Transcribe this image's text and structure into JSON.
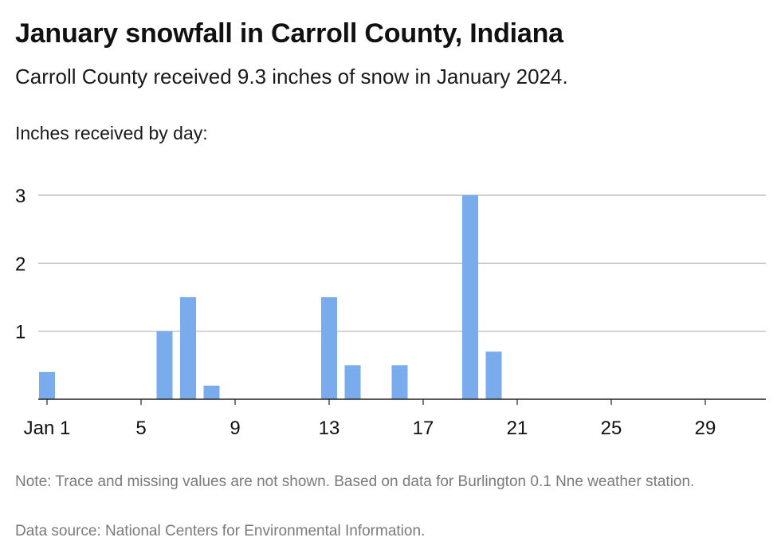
{
  "chart_data": {
    "type": "bar",
    "title": "January snowfall in Carroll County, Indiana",
    "subtitle": "Carroll County received 9.3 inches of snow in January 2024.",
    "ylabel": "Inches received by day:",
    "xlabel": "",
    "x": [
      1,
      2,
      3,
      4,
      5,
      6,
      7,
      8,
      9,
      10,
      11,
      12,
      13,
      14,
      15,
      16,
      17,
      18,
      19,
      20,
      21,
      22,
      23,
      24,
      25,
      26,
      27,
      28,
      29,
      30,
      31
    ],
    "values": [
      0.4,
      0,
      0,
      0,
      0,
      1.0,
      1.5,
      0.2,
      0,
      0,
      0,
      0,
      1.5,
      0.5,
      0,
      0.5,
      0,
      0,
      3.0,
      0.7,
      0,
      0,
      0,
      0,
      0,
      0,
      0,
      0,
      0,
      0,
      0
    ],
    "x_ticks": [
      {
        "value": 1,
        "label": "Jan 1"
      },
      {
        "value": 5,
        "label": "5"
      },
      {
        "value": 9,
        "label": "9"
      },
      {
        "value": 13,
        "label": "13"
      },
      {
        "value": 17,
        "label": "17"
      },
      {
        "value": 21,
        "label": "21"
      },
      {
        "value": 25,
        "label": "25"
      },
      {
        "value": 29,
        "label": "29"
      }
    ],
    "y_ticks": [
      {
        "value": 1,
        "label": "1"
      },
      {
        "value": 2,
        "label": "2"
      },
      {
        "value": 3,
        "label": "3"
      }
    ],
    "ylim": [
      0,
      3
    ],
    "xlim": [
      1,
      31
    ],
    "grid": true,
    "bar_color": "#7aabed",
    "grid_color": "#b5b5b5",
    "note": "Note: Trace and missing values are not shown. Based on data for Burlington 0.1 Nne weather station.",
    "source": "Data source: National Centers for Environmental Information."
  }
}
